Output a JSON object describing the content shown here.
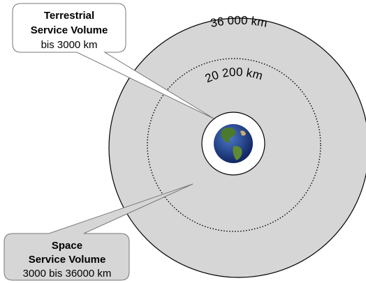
{
  "rings": [
    {
      "label": "36 000 km"
    },
    {
      "label": "20 200 km"
    }
  ],
  "callouts": [
    {
      "lines": [
        "Terrestrial",
        "Service Volume",
        "bis 3000 km"
      ]
    },
    {
      "lines": [
        "Space",
        "Service Volume",
        "3000 bis 36000 km"
      ]
    }
  ]
}
